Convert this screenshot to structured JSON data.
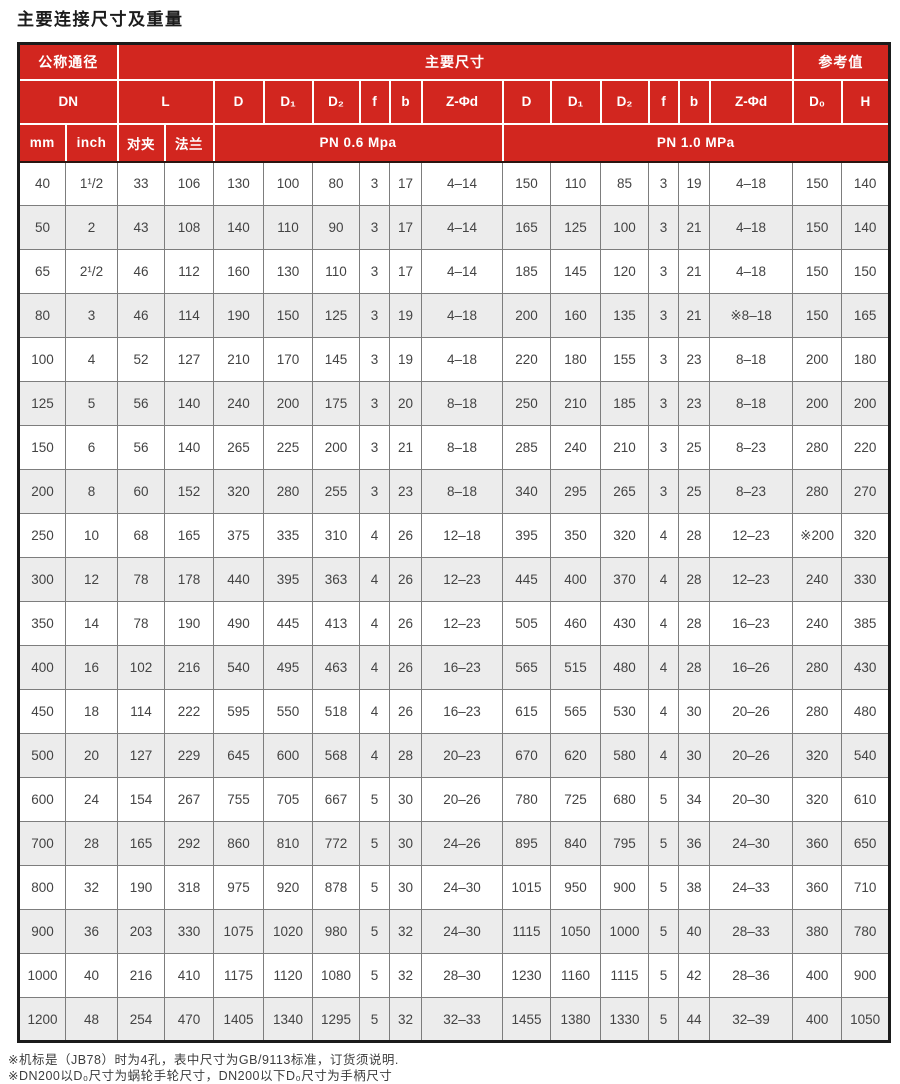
{
  "title": "主要连接尺寸及重量",
  "colors": {
    "header_red": "#d2261f",
    "row_alt_gray": "#ececec",
    "outer_border": "#1b1b1b",
    "cell_border": "#7d7d7d"
  },
  "table": {
    "header": {
      "group_nominal": "公称通径",
      "group_main": "主要尺寸",
      "group_reference": "参考值",
      "dn": "DN",
      "l": "L",
      "dim_labels": [
        "D",
        "D₁",
        "D₂",
        "f",
        "b",
        "Z-Φd"
      ],
      "d0": "D₀",
      "h": "H",
      "mm": "mm",
      "inch": "inch",
      "wafer": "对夹",
      "flange": "法兰",
      "pn06": "PN 0.6 Mpa",
      "pn10": "PN 1.0 MPa"
    },
    "rows": [
      [
        "40",
        "1¹/2",
        "33",
        "106",
        "130",
        "100",
        "80",
        "3",
        "17",
        "4–14",
        "150",
        "110",
        "85",
        "3",
        "19",
        "4–18",
        "150",
        "140"
      ],
      [
        "50",
        "2",
        "43",
        "108",
        "140",
        "110",
        "90",
        "3",
        "17",
        "4–14",
        "165",
        "125",
        "100",
        "3",
        "21",
        "4–18",
        "150",
        "140"
      ],
      [
        "65",
        "2¹/2",
        "46",
        "112",
        "160",
        "130",
        "110",
        "3",
        "17",
        "4–14",
        "185",
        "145",
        "120",
        "3",
        "21",
        "4–18",
        "150",
        "150"
      ],
      [
        "80",
        "3",
        "46",
        "114",
        "190",
        "150",
        "125",
        "3",
        "19",
        "4–18",
        "200",
        "160",
        "135",
        "3",
        "21",
        "※8–18",
        "150",
        "165"
      ],
      [
        "100",
        "4",
        "52",
        "127",
        "210",
        "170",
        "145",
        "3",
        "19",
        "4–18",
        "220",
        "180",
        "155",
        "3",
        "23",
        "8–18",
        "200",
        "180"
      ],
      [
        "125",
        "5",
        "56",
        "140",
        "240",
        "200",
        "175",
        "3",
        "20",
        "8–18",
        "250",
        "210",
        "185",
        "3",
        "23",
        "8–18",
        "200",
        "200"
      ],
      [
        "150",
        "6",
        "56",
        "140",
        "265",
        "225",
        "200",
        "3",
        "21",
        "8–18",
        "285",
        "240",
        "210",
        "3",
        "25",
        "8–23",
        "280",
        "220"
      ],
      [
        "200",
        "8",
        "60",
        "152",
        "320",
        "280",
        "255",
        "3",
        "23",
        "8–18",
        "340",
        "295",
        "265",
        "3",
        "25",
        "8–23",
        "280",
        "270"
      ],
      [
        "250",
        "10",
        "68",
        "165",
        "375",
        "335",
        "310",
        "4",
        "26",
        "12–18",
        "395",
        "350",
        "320",
        "4",
        "28",
        "12–23",
        "※200",
        "320"
      ],
      [
        "300",
        "12",
        "78",
        "178",
        "440",
        "395",
        "363",
        "4",
        "26",
        "12–23",
        "445",
        "400",
        "370",
        "4",
        "28",
        "12–23",
        "240",
        "330"
      ],
      [
        "350",
        "14",
        "78",
        "190",
        "490",
        "445",
        "413",
        "4",
        "26",
        "12–23",
        "505",
        "460",
        "430",
        "4",
        "28",
        "16–23",
        "240",
        "385"
      ],
      [
        "400",
        "16",
        "102",
        "216",
        "540",
        "495",
        "463",
        "4",
        "26",
        "16–23",
        "565",
        "515",
        "480",
        "4",
        "28",
        "16–26",
        "280",
        "430"
      ],
      [
        "450",
        "18",
        "114",
        "222",
        "595",
        "550",
        "518",
        "4",
        "26",
        "16–23",
        "615",
        "565",
        "530",
        "4",
        "30",
        "20–26",
        "280",
        "480"
      ],
      [
        "500",
        "20",
        "127",
        "229",
        "645",
        "600",
        "568",
        "4",
        "28",
        "20–23",
        "670",
        "620",
        "580",
        "4",
        "30",
        "20–26",
        "320",
        "540"
      ],
      [
        "600",
        "24",
        "154",
        "267",
        "755",
        "705",
        "667",
        "5",
        "30",
        "20–26",
        "780",
        "725",
        "680",
        "5",
        "34",
        "20–30",
        "320",
        "610"
      ],
      [
        "700",
        "28",
        "165",
        "292",
        "860",
        "810",
        "772",
        "5",
        "30",
        "24–26",
        "895",
        "840",
        "795",
        "5",
        "36",
        "24–30",
        "360",
        "650"
      ],
      [
        "800",
        "32",
        "190",
        "318",
        "975",
        "920",
        "878",
        "5",
        "30",
        "24–30",
        "1015",
        "950",
        "900",
        "5",
        "38",
        "24–33",
        "360",
        "710"
      ],
      [
        "900",
        "36",
        "203",
        "330",
        "1075",
        "1020",
        "980",
        "5",
        "32",
        "24–30",
        "1115",
        "1050",
        "1000",
        "5",
        "40",
        "28–33",
        "380",
        "780"
      ],
      [
        "1000",
        "40",
        "216",
        "410",
        "1175",
        "1120",
        "1080",
        "5",
        "32",
        "28–30",
        "1230",
        "1160",
        "1115",
        "5",
        "42",
        "28–36",
        "400",
        "900"
      ],
      [
        "1200",
        "48",
        "254",
        "470",
        "1405",
        "1340",
        "1295",
        "5",
        "32",
        "32–33",
        "1455",
        "1380",
        "1330",
        "5",
        "44",
        "32–39",
        "400",
        "1050"
      ]
    ]
  },
  "footnotes": [
    "※机标是（JB78）时为4孔，表中尺寸为GB/9113标准，订货须说明.",
    "※DN200以D₀尺寸为蜗轮手轮尺寸，DN200以下D₀尺寸为手柄尺寸"
  ]
}
